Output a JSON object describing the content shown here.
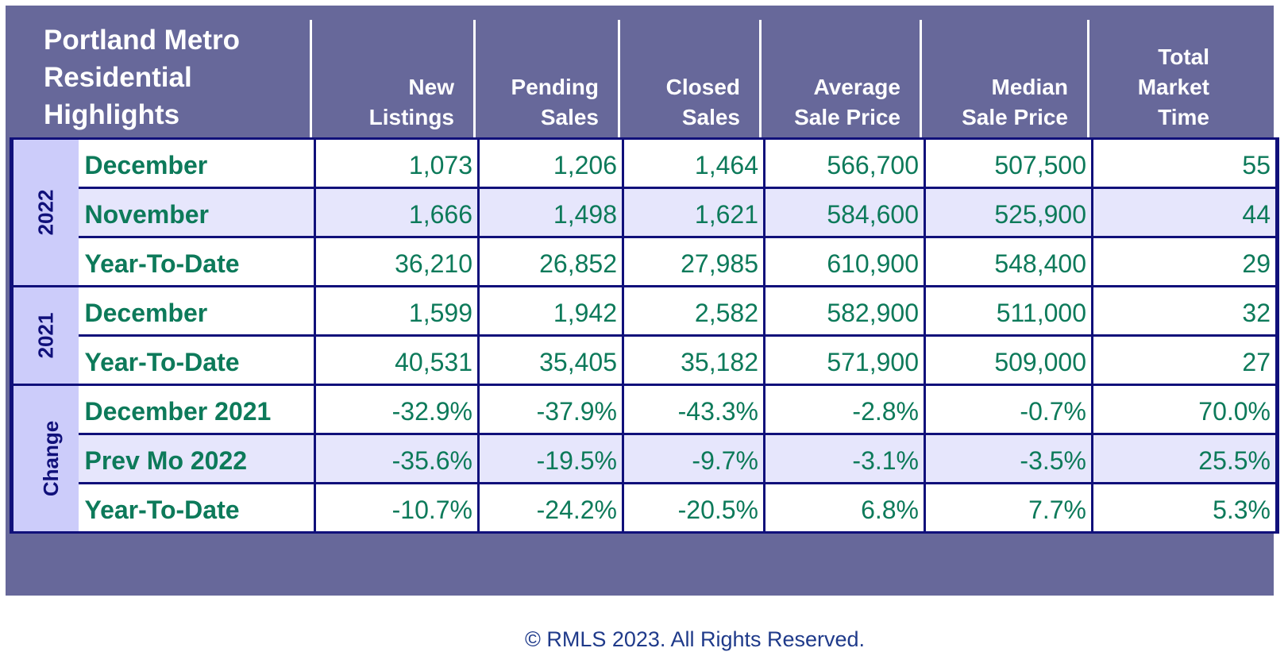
{
  "chart_data": {
    "type": "table",
    "title": "Portland Metro Residential Highlights",
    "title_lines": [
      "Portland Metro",
      "Residential",
      "Highlights"
    ],
    "columns": [
      {
        "lines": [
          "New",
          "Listings"
        ]
      },
      {
        "lines": [
          "Pending",
          "Sales"
        ]
      },
      {
        "lines": [
          "Closed",
          "Sales"
        ]
      },
      {
        "lines": [
          "Average",
          "Sale Price"
        ]
      },
      {
        "lines": [
          "Median",
          "Sale Price"
        ]
      },
      {
        "lines": [
          "Total",
          "Market",
          "Time"
        ]
      }
    ],
    "groups": [
      {
        "label": "2022",
        "rows": [
          {
            "label": "December",
            "shade": false,
            "values": [
              "1,073",
              "1,206",
              "1,464",
              "566,700",
              "507,500",
              "55"
            ]
          },
          {
            "label": "November",
            "shade": true,
            "values": [
              "1,666",
              "1,498",
              "1,621",
              "584,600",
              "525,900",
              "44"
            ]
          },
          {
            "label": "Year-To-Date",
            "shade": false,
            "values": [
              "36,210",
              "26,852",
              "27,985",
              "610,900",
              "548,400",
              "29"
            ]
          }
        ]
      },
      {
        "label": "2021",
        "rows": [
          {
            "label": "December",
            "shade": false,
            "values": [
              "1,599",
              "1,942",
              "2,582",
              "582,900",
              "511,000",
              "32"
            ]
          },
          {
            "label": "Year-To-Date",
            "shade": false,
            "values": [
              "40,531",
              "35,405",
              "35,182",
              "571,900",
              "509,000",
              "27"
            ]
          }
        ]
      },
      {
        "label": "Change",
        "rows": [
          {
            "label": "December 2021",
            "shade": false,
            "values": [
              "-32.9%",
              "-37.9%",
              "-43.3%",
              "-2.8%",
              "-0.7%",
              "70.0%"
            ]
          },
          {
            "label": "Prev Mo 2022",
            "shade": true,
            "values": [
              "-35.6%",
              "-19.5%",
              "-9.7%",
              "-3.1%",
              "-3.5%",
              "25.5%"
            ]
          },
          {
            "label": "Year-To-Date",
            "shade": false,
            "values": [
              "-10.7%",
              "-24.2%",
              "-20.5%",
              "6.8%",
              "7.7%",
              "5.3%"
            ]
          }
        ]
      }
    ]
  },
  "colors": {
    "header_bg": "#67689a",
    "border": "#10107a",
    "text_green": "#0d7a5a",
    "year_bg": "#ccccfa",
    "shade_bg": "#e6e6fc"
  },
  "footer": "© RMLS 2023. All Rights Reserved."
}
